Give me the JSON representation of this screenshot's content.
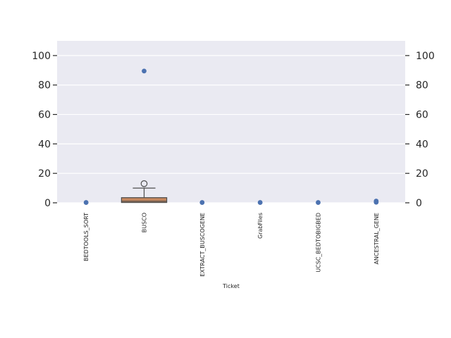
{
  "chart_data": {
    "type": "box+scatter",
    "xlabel": "Ticket",
    "ylabel": "",
    "ylim": [
      0,
      110
    ],
    "yticks": [
      0,
      20,
      40,
      60,
      80,
      100
    ],
    "grid": true,
    "categories": [
      "BEDTOOLS_SORT",
      "BUSCO",
      "EXTRACT_BUSCOGENE",
      "GrabFiles",
      "UCSC_BEDTOBIGBED",
      "ANCESTRAL_GENE"
    ],
    "boxes": [
      {
        "category": "BUSCO",
        "q1": 0.2,
        "median": 1.0,
        "q3": 3.5,
        "whisker_low": 0.0,
        "whisker_high": 10.0,
        "outliers": [
          13.0
        ]
      }
    ],
    "points": [
      {
        "category": "BEDTOOLS_SORT",
        "values": [
          0.2
        ]
      },
      {
        "category": "BUSCO",
        "values": [
          89.5
        ]
      },
      {
        "category": "EXTRACT_BUSCOGENE",
        "values": [
          0.2
        ]
      },
      {
        "category": "GrabFiles",
        "values": [
          0.2
        ]
      },
      {
        "category": "UCSC_BEDTOBIGBED",
        "values": [
          0.2
        ]
      },
      {
        "category": "ANCESTRAL_GENE",
        "values": [
          0.4,
          1.2
        ]
      }
    ],
    "colors": {
      "background": "#eaeaf2",
      "grid": "#ffffff",
      "box_fill": "#c4875e",
      "box_edge": "#4d4d4d",
      "point": "#4c72b0"
    }
  }
}
